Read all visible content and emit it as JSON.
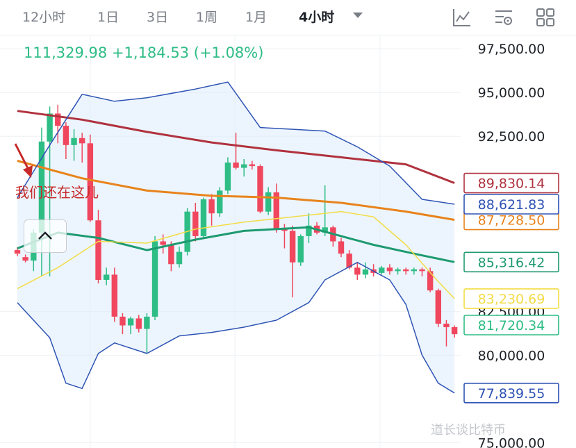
{
  "tabs": [
    {
      "label": "12小时",
      "active": false
    },
    {
      "label": "1日",
      "active": false
    },
    {
      "label": "3日",
      "active": false
    },
    {
      "label": "1周",
      "active": false
    },
    {
      "label": "1月",
      "active": false
    },
    {
      "label": "4小时",
      "active": true
    }
  ],
  "toolbar": {
    "icons": [
      "line-chart-icon",
      "indicator-settings-icon",
      "grid-layout-icon"
    ]
  },
  "price": {
    "last": "111,329.98",
    "change": "+1,184.53",
    "change_pct": "(+1.08%)",
    "color": "#2ebd85"
  },
  "annotation": {
    "text": "我们还在这儿",
    "color": "#c62a2a"
  },
  "watermark": "道长谈比特币",
  "chart_data": {
    "type": "candlestick",
    "y_ticks": [
      {
        "value": 97500,
        "label": "97,500.00"
      },
      {
        "value": 95000,
        "label": "95,000.00"
      },
      {
        "value": 92500,
        "label": "92,500.00"
      },
      {
        "value": 82500,
        "label": "82,500.00"
      },
      {
        "value": 80000,
        "label": "80,000.00"
      },
      {
        "value": 75000,
        "label": "75,000.00"
      }
    ],
    "ylim": [
      74700,
      98300
    ],
    "x_count": 55,
    "grid": true,
    "up_color": "#2ebd85",
    "down_color": "#f0475e",
    "candles": [
      [
        86000,
        86150,
        85650,
        85800
      ],
      [
        85600,
        85750,
        85300,
        85400
      ],
      [
        85400,
        87200,
        84800,
        87000
      ],
      [
        87000,
        93000,
        84500,
        92200
      ],
      [
        92200,
        94200,
        84500,
        93800
      ],
      [
        93800,
        94300,
        92100,
        93100
      ],
      [
        93100,
        93300,
        91200,
        92000
      ],
      [
        92000,
        92900,
        91100,
        92400
      ],
      [
        92400,
        92700,
        91000,
        92100
      ],
      [
        92100,
        92600,
        87600,
        87700
      ],
      [
        87700,
        88300,
        84100,
        84300
      ],
      [
        84300,
        85000,
        84000,
        84600
      ],
      [
        84600,
        85000,
        81900,
        82200
      ],
      [
        82200,
        82400,
        81200,
        81700
      ],
      [
        81700,
        82200,
        81200,
        82100
      ],
      [
        82100,
        82300,
        81300,
        81500
      ],
      [
        81500,
        82400,
        80100,
        82200
      ],
      [
        82200,
        86800,
        82000,
        86500
      ],
      [
        86500,
        86900,
        85800,
        86300
      ],
      [
        86300,
        86500,
        84800,
        85200
      ],
      [
        85200,
        86200,
        85000,
        85900
      ],
      [
        85900,
        88400,
        85700,
        88200
      ],
      [
        88200,
        88700,
        86500,
        86800
      ],
      [
        86800,
        89000,
        86700,
        88900
      ],
      [
        88900,
        89200,
        87400,
        88100
      ],
      [
        88100,
        89600,
        87900,
        89400
      ],
      [
        89400,
        91300,
        89200,
        91000
      ],
      [
        91000,
        92700,
        90600,
        90700
      ],
      [
        90700,
        91200,
        90200,
        90900
      ],
      [
        90900,
        91100,
        90600,
        90800
      ],
      [
        90800,
        90900,
        88100,
        88200
      ],
      [
        88200,
        89600,
        88000,
        89300
      ],
      [
        89300,
        89800,
        87000,
        87200
      ],
      [
        87200,
        87500,
        86100,
        87100
      ],
      [
        87100,
        87400,
        83300,
        85300
      ],
      [
        85300,
        86900,
        85100,
        86800
      ],
      [
        86800,
        88100,
        86400,
        87400
      ],
      [
        87400,
        87600,
        86900,
        87000
      ],
      [
        87000,
        89700,
        86800,
        87300
      ],
      [
        87300,
        87400,
        86200,
        86500
      ],
      [
        86500,
        86700,
        85600,
        85800
      ],
      [
        85800,
        86000,
        84900,
        85000
      ],
      [
        85000,
        85300,
        84300,
        84600
      ],
      [
        84600,
        85300,
        84400,
        84900
      ],
      [
        84900,
        85200,
        84500,
        84700
      ],
      [
        84700,
        85100,
        84600,
        85000
      ],
      [
        85000,
        85200,
        84600,
        84800
      ],
      [
        84800,
        85000,
        84600,
        84900
      ],
      [
        84900,
        85000,
        84600,
        84800
      ],
      [
        84800,
        85000,
        84600,
        84900
      ],
      [
        84900,
        85000,
        84500,
        84800
      ],
      [
        84800,
        85000,
        83600,
        83700
      ],
      [
        83700,
        83800,
        81600,
        81800
      ],
      [
        81800,
        82000,
        80500,
        81600
      ],
      [
        81600,
        81700,
        81000,
        81200
      ]
    ],
    "lines": [
      {
        "name": "MA 紫红",
        "color": "#b0323e",
        "width": 3,
        "label": "89,830.14",
        "end": 89830.14,
        "pts": [
          [
            0,
            93950
          ],
          [
            8,
            93450
          ],
          [
            16,
            92750
          ],
          [
            24,
            92150
          ],
          [
            32,
            91700
          ],
          [
            40,
            91300
          ],
          [
            48,
            90900
          ],
          [
            54,
            89830.14
          ]
        ]
      },
      {
        "name": "MA 橙",
        "color": "#e8831c",
        "width": 3,
        "label": "87,728.50",
        "end": 87728.5,
        "pts": [
          [
            0,
            91100
          ],
          [
            8,
            90100
          ],
          [
            16,
            89400
          ],
          [
            24,
            89100
          ],
          [
            32,
            89000
          ],
          [
            40,
            88700
          ],
          [
            48,
            88200
          ],
          [
            54,
            87728.5
          ]
        ]
      },
      {
        "name": "MA 绿",
        "color": "#1e9a70",
        "width": 3,
        "label": "85,316.42",
        "end": 85316.42,
        "pts": [
          [
            0,
            86100
          ],
          [
            5,
            87000
          ],
          [
            10,
            86700
          ],
          [
            16,
            86000
          ],
          [
            22,
            86600
          ],
          [
            28,
            87100
          ],
          [
            36,
            87300
          ],
          [
            44,
            86300
          ],
          [
            50,
            85700
          ],
          [
            54,
            85316.42
          ]
        ]
      },
      {
        "name": "MA 黄",
        "color": "#f3dc45",
        "width": 1.5,
        "label": "83,230.69",
        "end": 83230.69,
        "pts": [
          [
            0,
            83800
          ],
          [
            5,
            85000
          ],
          [
            10,
            86500
          ],
          [
            16,
            86400
          ],
          [
            22,
            87200
          ],
          [
            28,
            87600
          ],
          [
            34,
            87900
          ],
          [
            40,
            88200
          ],
          [
            44,
            87900
          ],
          [
            48,
            86300
          ],
          [
            52,
            84200
          ],
          [
            54,
            83230.69
          ]
        ]
      },
      {
        "name": "BB 上",
        "color": "#2e53b4",
        "width": 1.5,
        "label": "88,621.83",
        "end": 88621.83,
        "pts": [
          [
            0,
            89000
          ],
          [
            4,
            92000
          ],
          [
            8,
            94900
          ],
          [
            12,
            94500
          ],
          [
            16,
            94700
          ],
          [
            22,
            95200
          ],
          [
            26,
            95600
          ],
          [
            30,
            93000
          ],
          [
            34,
            92900
          ],
          [
            38,
            92800
          ],
          [
            42,
            91900
          ],
          [
            46,
            90800
          ],
          [
            50,
            88900
          ],
          [
            54,
            88621.83
          ]
        ]
      },
      {
        "name": "BB 下",
        "color": "#2e53b4",
        "width": 1.5,
        "label": "77,839.55",
        "end": 77839.55,
        "pts": [
          [
            0,
            83000
          ],
          [
            4,
            81000
          ],
          [
            6,
            78400
          ],
          [
            8,
            78100
          ],
          [
            10,
            80100
          ],
          [
            12,
            80700
          ],
          [
            16,
            80100
          ],
          [
            20,
            81100
          ],
          [
            24,
            81300
          ],
          [
            28,
            81600
          ],
          [
            32,
            82000
          ],
          [
            36,
            83000
          ],
          [
            38,
            84300
          ],
          [
            42,
            85300
          ],
          [
            46,
            84300
          ],
          [
            48,
            82900
          ],
          [
            50,
            80000
          ],
          [
            52,
            78400
          ],
          [
            54,
            77839.55
          ]
        ]
      }
    ],
    "extra_tags": [
      {
        "label": "81,720.34",
        "value": 81720.34,
        "color": "#2ebd85"
      }
    ]
  }
}
